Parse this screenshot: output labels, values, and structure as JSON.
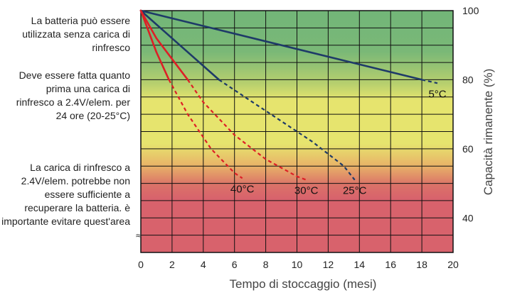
{
  "chart_data": {
    "type": "line",
    "xlabel": "Tempo di stoccaggio (mesi)",
    "ylabel": "Capacità rimanente (%)",
    "xlim": [
      0,
      20
    ],
    "ylim": [
      30,
      100
    ],
    "xticks": [
      "0",
      "2",
      "4",
      "6",
      "8",
      "10",
      "12",
      "14",
      "16",
      "18",
      "20"
    ],
    "yticks": [
      "100",
      "80",
      "60",
      "40"
    ],
    "grid": true,
    "zones": [
      {
        "text": "La batteria può essere utilizzata senza carica di rinfresco",
        "from": 80,
        "to": 100,
        "color": "#72b678"
      },
      {
        "text": "Deve essere fatta quanto prima una carica di rinfresco a 2.4V/elem. per 24 ore (20-25°C)",
        "from": 60,
        "to": 80,
        "color": "#e6e46e"
      },
      {
        "text": "La carica di rinfresco a 2.4V/elem. potrebbe non essere sufficiente a recuperare la batteria. è importante evitare quest'area",
        "from": 30,
        "to": 60,
        "color": "#d8626c"
      }
    ],
    "series": [
      {
        "name": "5°C",
        "color": "#1e3a68",
        "solid": [
          [
            0,
            100
          ],
          [
            18,
            80
          ]
        ],
        "dashed": [
          [
            18,
            80
          ],
          [
            19,
            79
          ]
        ]
      },
      {
        "name": "25°C",
        "color": "#1e3a68",
        "solid": [
          [
            0,
            100
          ],
          [
            5,
            80
          ]
        ],
        "dashed": [
          [
            5,
            80
          ],
          [
            7,
            74
          ],
          [
            9,
            68
          ],
          [
            11,
            62
          ],
          [
            13,
            55
          ],
          [
            13.7,
            51
          ]
        ]
      },
      {
        "name": "30°C",
        "color": "#dd1f26",
        "solid": [
          [
            0,
            100
          ],
          [
            1,
            92
          ],
          [
            2,
            86
          ],
          [
            3,
            80
          ]
        ],
        "dashed": [
          [
            3,
            80
          ],
          [
            4,
            73.5
          ],
          [
            6,
            64
          ],
          [
            8,
            57
          ],
          [
            10,
            52
          ],
          [
            10.6,
            51
          ]
        ]
      },
      {
        "name": "40°C",
        "color": "#dd1f26",
        "solid": [
          [
            0,
            100
          ],
          [
            1,
            88
          ],
          [
            1.8,
            80
          ]
        ],
        "dashed": [
          [
            1.8,
            80
          ],
          [
            3,
            70
          ],
          [
            4.5,
            60
          ],
          [
            6,
            53
          ],
          [
            6.5,
            51.5
          ]
        ]
      }
    ]
  }
}
